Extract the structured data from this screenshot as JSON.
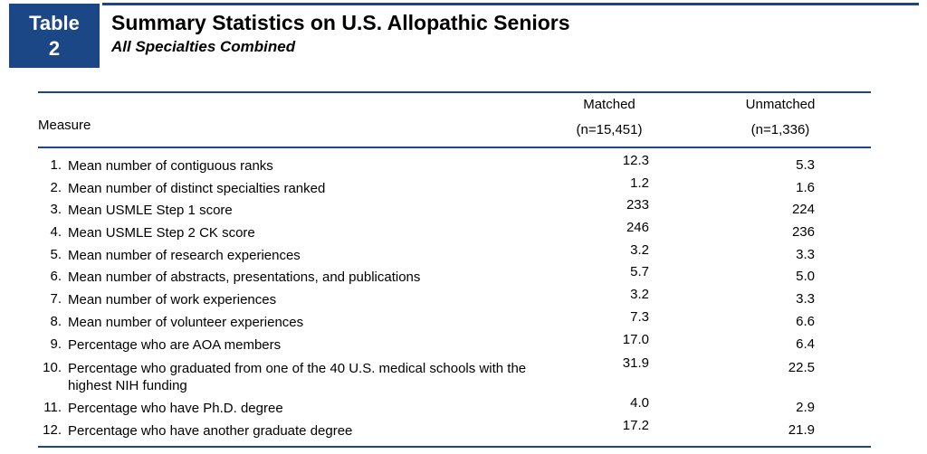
{
  "badge": {
    "line1": "Table",
    "line2": "2"
  },
  "title": "Summary Statistics on U.S. Allopathic Seniors",
  "subtitle": "All Specialties Combined",
  "columns": {
    "measure": "Measure",
    "matched": {
      "label": "Matched",
      "n": "(n=15,451)"
    },
    "unmatched": {
      "label": "Unmatched",
      "n": "(n=1,336)"
    }
  },
  "rows": [
    {
      "num": "1.",
      "measure": "Mean number of contiguous ranks",
      "matched": "12.3",
      "unmatched": "5.3"
    },
    {
      "num": "2.",
      "measure": "Mean number of distinct specialties ranked",
      "matched": "1.2",
      "unmatched": "1.6"
    },
    {
      "num": "3.",
      "measure": "Mean USMLE Step 1 score",
      "matched": "233",
      "unmatched": "224"
    },
    {
      "num": "4.",
      "measure": "Mean USMLE Step 2 CK score",
      "matched": "246",
      "unmatched": "236"
    },
    {
      "num": "5.",
      "measure": "Mean number of research experiences",
      "matched": "3.2",
      "unmatched": "3.3"
    },
    {
      "num": "6.",
      "measure": "Mean number of abstracts, presentations, and publications",
      "matched": "5.7",
      "unmatched": "5.0"
    },
    {
      "num": "7.",
      "measure": "Mean number of work experiences",
      "matched": "3.2",
      "unmatched": "3.3"
    },
    {
      "num": "8.",
      "measure": "Mean number of volunteer experiences",
      "matched": "7.3",
      "unmatched": "6.6"
    },
    {
      "num": "9.",
      "measure": "Percentage who are AOA members",
      "matched": "17.0",
      "unmatched": "6.4"
    },
    {
      "num": "10.",
      "measure": "Percentage who graduated from one of the 40 U.S. medical schools with the highest NIH funding",
      "matched": "31.9",
      "unmatched": "22.5"
    },
    {
      "num": "11.",
      "measure": "Percentage who have Ph.D. degree",
      "matched": "4.0",
      "unmatched": "2.9"
    },
    {
      "num": "12.",
      "measure": "Percentage who have another graduate degree",
      "matched": "17.2",
      "unmatched": "21.9"
    }
  ],
  "colors": {
    "accent": "#1c4787"
  }
}
